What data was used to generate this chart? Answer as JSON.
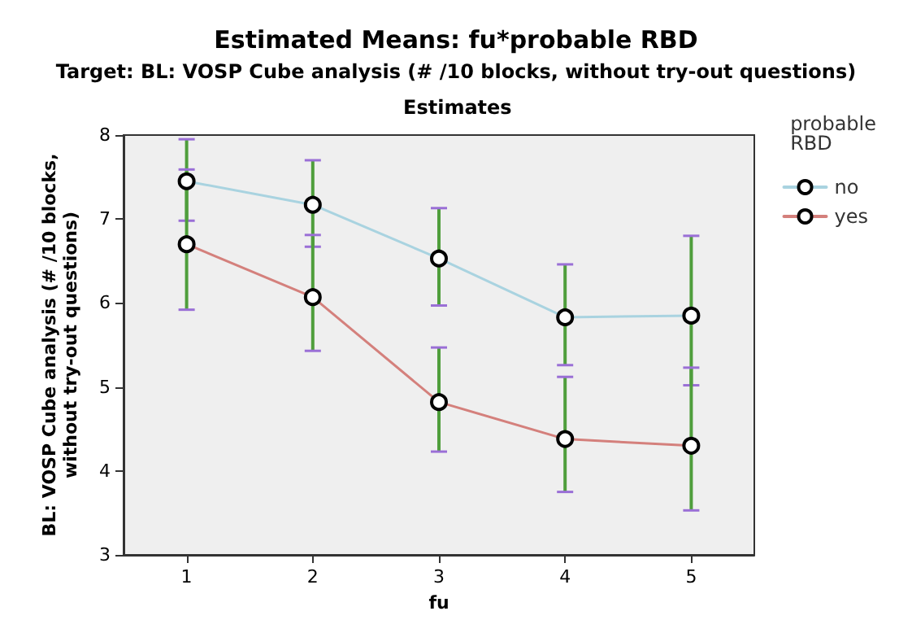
{
  "chart_data": {
    "type": "line",
    "title": "Estimated Means: fu*probable RBD",
    "subtitle": "Target: BL: VOSP Cube analysis (# /10 blocks, without try-out questions)",
    "annotations": [
      "Estimates"
    ],
    "xlabel": "fu",
    "ylabel": "BL: VOSP Cube analysis (# /10 blocks, without try-out questions)",
    "legend_title": "probable RBD",
    "categories": [
      "1",
      "2",
      "3",
      "4",
      "5"
    ],
    "series": [
      {
        "name": "no",
        "color": "#a9d3e0",
        "values": [
          7.45,
          7.17,
          6.53,
          5.83,
          5.85
        ],
        "errors": [
          [
            6.98,
            7.95
          ],
          [
            6.67,
            7.7
          ],
          [
            5.97,
            7.13
          ],
          [
            5.26,
            6.46
          ],
          [
            5.02,
            6.8
          ]
        ]
      },
      {
        "name": "yes",
        "color": "#d4807c",
        "values": [
          6.7,
          6.07,
          4.82,
          4.38,
          4.3
        ],
        "errors": [
          [
            5.92,
            7.59
          ],
          [
            5.43,
            6.81
          ],
          [
            4.23,
            5.47
          ],
          [
            3.75,
            5.12
          ],
          [
            3.53,
            5.23
          ]
        ]
      }
    ],
    "ylim": [
      3,
      8
    ],
    "yticks": [
      3,
      4,
      5,
      6,
      7,
      8
    ],
    "grid": false,
    "legend": "right",
    "marker": "circle",
    "line_style": "solid"
  }
}
